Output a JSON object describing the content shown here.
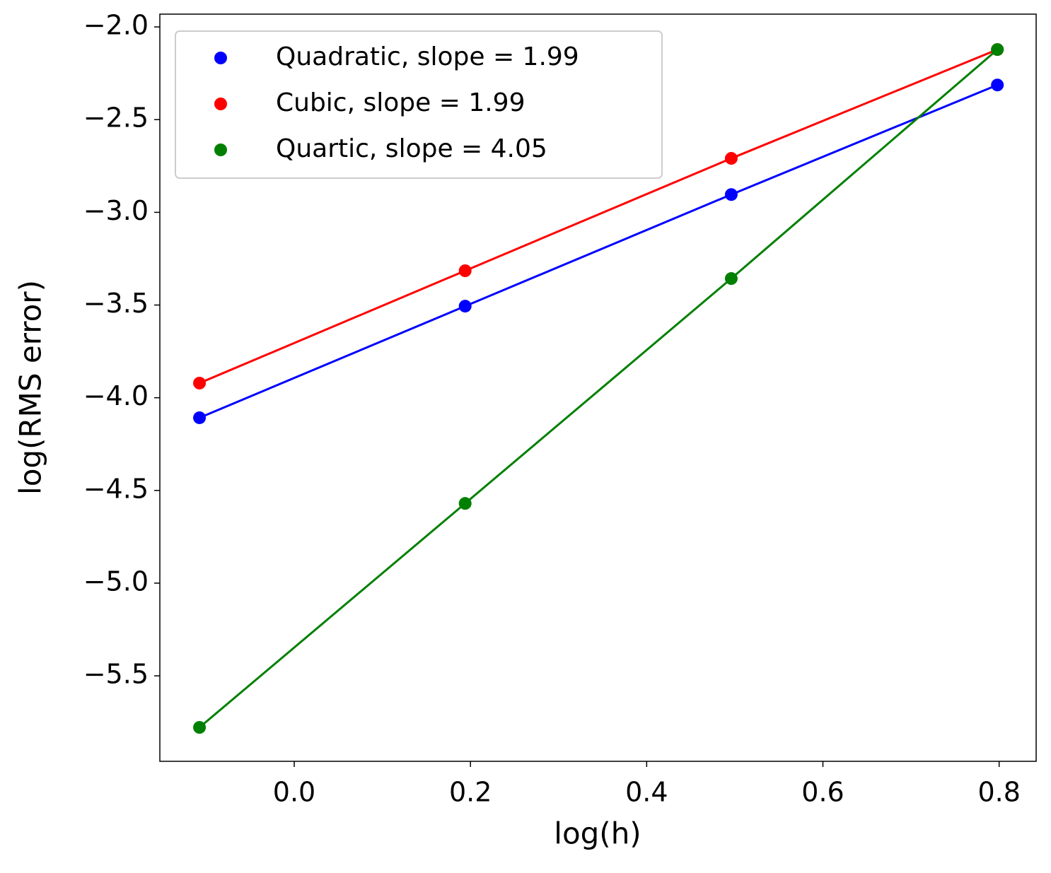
{
  "chart_data": {
    "type": "line",
    "x_label": "log(h)",
    "y_label": "log(RMS error)",
    "x": [
      -0.1075,
      0.194,
      0.496,
      0.798
    ],
    "series": [
      {
        "name": "Quadratic, slope = 1.99",
        "color": "#0000ff",
        "values": [
          -4.108,
          -3.506,
          -2.904,
          -2.313
        ]
      },
      {
        "name": "Cubic, slope = 1.99",
        "color": "#ff0000",
        "values": [
          -3.921,
          -3.315,
          -2.709,
          -2.122
        ]
      },
      {
        "name": "Quartic, slope = 4.05",
        "color": "#008000",
        "values": [
          -5.778,
          -4.57,
          -3.357,
          -2.122
        ]
      }
    ],
    "xlim": [
      -0.1525,
      0.842
    ],
    "ylim": [
      -5.961,
      -1.931
    ],
    "xticks": [
      {
        "value": 0,
        "label": "0.0"
      },
      0.2,
      0.4,
      0.6,
      0.8
    ],
    "yticks": [
      {
        "value": -2.0,
        "label": "−2.0"
      },
      {
        "value": -2.5,
        "label": "−2.5"
      },
      {
        "value": -3.0,
        "label": "−3.0"
      },
      {
        "value": -3.5,
        "label": "−3.5"
      },
      {
        "value": -4.0,
        "label": "−4.0"
      },
      {
        "value": -4.5,
        "label": "−4.5"
      },
      {
        "value": -5.0,
        "label": "−5.0"
      },
      {
        "value": -5.5,
        "label": "−5.5"
      }
    ],
    "legend": "upper left",
    "grid": false
  }
}
